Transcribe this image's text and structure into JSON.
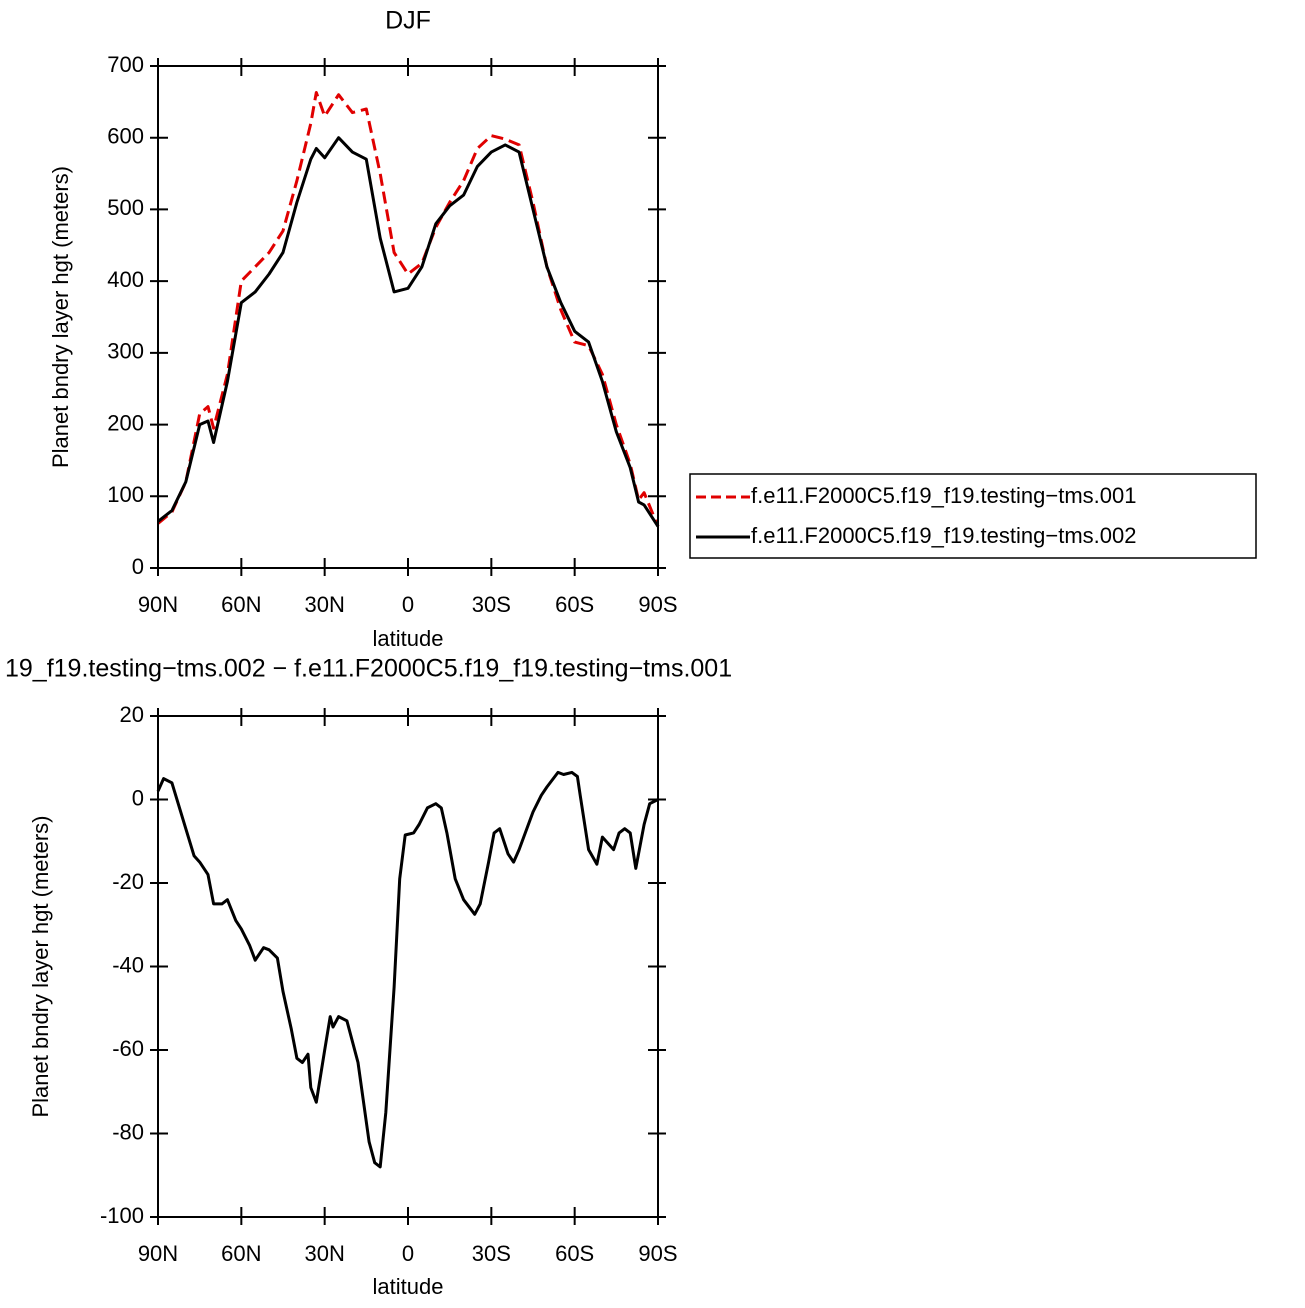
{
  "chart_data": [
    {
      "type": "line",
      "title": "DJF",
      "xlabel": "latitude",
      "ylabel": "Planet bndry layer hgt (meters)",
      "x": [
        90,
        85,
        80,
        75,
        72,
        70,
        65,
        60,
        55,
        50,
        45,
        40,
        35,
        33,
        30,
        25,
        20,
        15,
        10,
        5,
        0,
        -5,
        -10,
        -15,
        -20,
        -25,
        -30,
        -35,
        -40,
        -45,
        -50,
        -55,
        -60,
        -65,
        -70,
        -75,
        -80,
        -83,
        -85,
        -90
      ],
      "series": [
        {
          "name": "f.e11.F2000C5.f19_f19.testing−tms.001",
          "color": "#e00000",
          "linestyle": "dashed",
          "values": [
            62,
            78,
            120,
            215,
            225,
            195,
            270,
            400,
            420,
            440,
            470,
            540,
            620,
            663,
            630,
            660,
            635,
            640,
            550,
            440,
            410,
            425,
            475,
            510,
            540,
            585,
            603,
            598,
            590,
            510,
            420,
            360,
            315,
            310,
            270,
            200,
            145,
            95,
            105,
            58
          ]
        },
        {
          "name": "f.e11.F2000C5.f19_f19.testing−tms.002",
          "color": "#000000",
          "linestyle": "solid",
          "values": [
            65,
            80,
            120,
            200,
            205,
            175,
            260,
            370,
            385,
            410,
            440,
            510,
            570,
            585,
            572,
            600,
            580,
            570,
            460,
            385,
            390,
            420,
            480,
            505,
            520,
            560,
            580,
            590,
            580,
            500,
            420,
            370,
            330,
            315,
            260,
            190,
            140,
            92,
            88,
            58
          ]
        }
      ],
      "xlim": [
        90,
        -90
      ],
      "xticks": [
        {
          "value": 90,
          "label": "90N"
        },
        {
          "value": 60,
          "label": "60N"
        },
        {
          "value": 30,
          "label": "30N"
        },
        0,
        {
          "value": -30,
          "label": "30S"
        },
        {
          "value": -60,
          "label": "60S"
        },
        {
          "value": -90,
          "label": "90S"
        }
      ],
      "ylim": [
        0,
        700
      ],
      "yticks": [
        0,
        100,
        200,
        300,
        400,
        500,
        600,
        700
      ],
      "legend": "right"
    },
    {
      "type": "line",
      "title": "19_f19.testing−tms.002 − f.e11.F2000C5.f19_f19.testing−tms.001",
      "xlabel": "latitude",
      "ylabel": "Planet bndry layer hgt (meters)",
      "x": [
        90,
        88,
        85,
        80,
        77,
        75,
        72,
        70,
        67,
        65,
        62,
        60,
        57,
        55,
        52,
        50,
        47,
        45,
        42,
        40,
        38,
        36,
        35,
        33,
        30,
        28,
        27,
        25,
        22,
        18,
        14,
        12,
        10,
        8,
        5,
        3,
        1,
        -2,
        -4,
        -7,
        -10,
        -12,
        -14,
        -17,
        -20,
        -24,
        -26,
        -29,
        -31,
        -33,
        -36,
        -38,
        -40,
        -45,
        -48,
        -50,
        -54,
        -56,
        -59,
        -61,
        -62,
        -65,
        -68,
        -70,
        -74,
        -76,
        -78,
        -80,
        -82,
        -85,
        -87,
        -90
      ],
      "values": [
        2,
        5,
        4,
        -7,
        -13.5,
        -15,
        -18,
        -25,
        -25,
        -24,
        -29,
        -31,
        -35,
        -38.5,
        -35.5,
        -36,
        -38,
        -46,
        -55,
        -62,
        -63,
        -61,
        -69,
        -72.5,
        -60,
        -52,
        -54.5,
        -52,
        -53,
        -63,
        -82,
        -87,
        -88,
        -75,
        -45,
        -19,
        -8.5,
        -8,
        -6,
        -2,
        -1,
        -2,
        -8,
        -19,
        -24,
        -27.5,
        -25,
        -15,
        -8,
        -7,
        -13,
        -15,
        -12,
        -3,
        1,
        3,
        6.5,
        6,
        6.5,
        5.5,
        1,
        -12,
        -15.5,
        -9,
        -12,
        -8,
        -7,
        -8,
        -16.5,
        -6,
        -1,
        0
      ],
      "color": "#000000",
      "linestyle": "solid",
      "xlim": [
        90,
        -90
      ],
      "xticks": [
        {
          "value": 90,
          "label": "90N"
        },
        {
          "value": 60,
          "label": "60N"
        },
        {
          "value": 30,
          "label": "30N"
        },
        0,
        {
          "value": -30,
          "label": "30S"
        },
        {
          "value": -60,
          "label": "60S"
        },
        {
          "value": -90,
          "label": "90S"
        }
      ],
      "ylim": [
        -100,
        20
      ],
      "yticks": [
        -100,
        -80,
        -60,
        -40,
        -20,
        0,
        20
      ]
    }
  ]
}
